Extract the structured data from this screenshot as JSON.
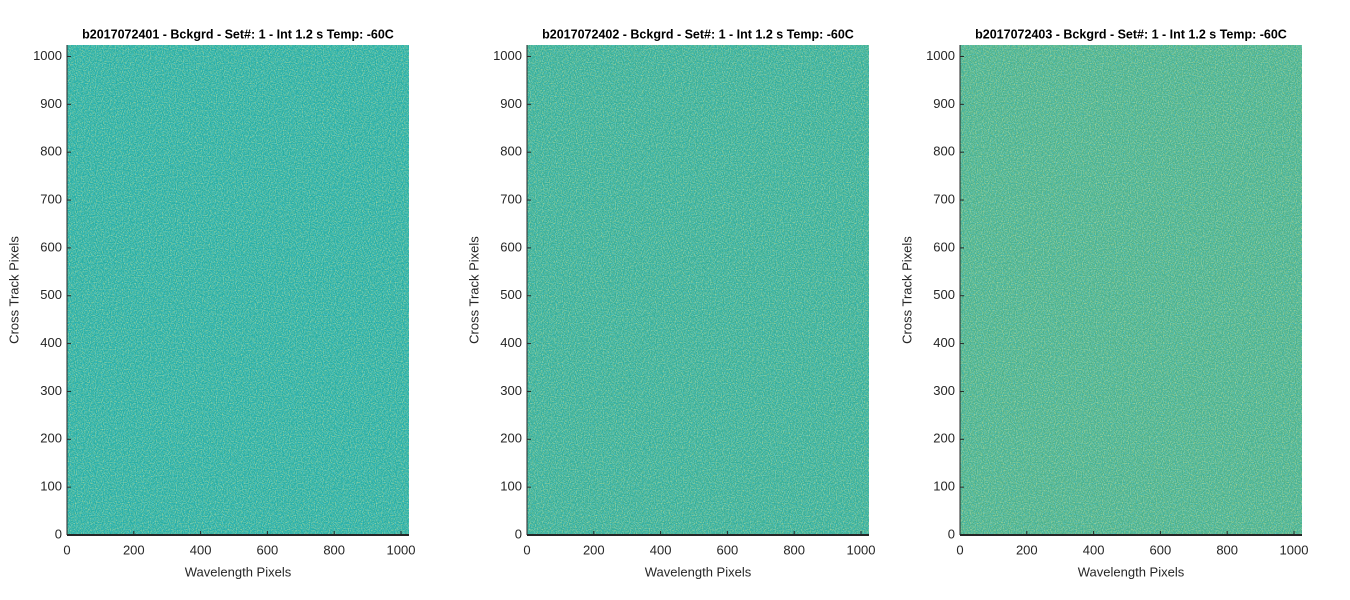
{
  "chart_data": [
    {
      "type": "image",
      "title": "b2017072401 - Bckgrd - Set#: 1 - Int 1.2 s Temp: -60C",
      "xlabel": "Wavelength Pixels",
      "ylabel": "Cross Track Pixels",
      "xlim": [
        0,
        1024
      ],
      "ylim": [
        0,
        1024
      ],
      "xticks": [
        0,
        200,
        400,
        600,
        800,
        1000
      ],
      "yticks": [
        0,
        100,
        200,
        300,
        400,
        500,
        600,
        700,
        800,
        900,
        1000
      ],
      "color": "#27ada2"
    },
    {
      "type": "image",
      "title": "b2017072402 - Bckgrd - Set#: 1 - Int 1.2 s Temp: -60C",
      "xlabel": "Wavelength Pixels",
      "ylabel": "Cross Track Pixels",
      "xlim": [
        0,
        1024
      ],
      "ylim": [
        0,
        1024
      ],
      "xticks": [
        0,
        200,
        400,
        600,
        800,
        1000
      ],
      "yticks": [
        0,
        100,
        200,
        300,
        400,
        500,
        600,
        700,
        800,
        900,
        1000
      ],
      "color": "#36ad96"
    },
    {
      "type": "image",
      "title": "b2017072403 - Bckgrd - Set#: 1 - Int 1.2 s Temp: -60C",
      "xlabel": "Wavelength Pixels",
      "ylabel": "Cross Track Pixels",
      "xlim": [
        0,
        1024
      ],
      "ylim": [
        0,
        1024
      ],
      "xticks": [
        0,
        200,
        400,
        600,
        800,
        1000
      ],
      "yticks": [
        0,
        100,
        200,
        300,
        400,
        500,
        600,
        700,
        800,
        900,
        1000
      ],
      "color": "#4bb08a"
    }
  ]
}
